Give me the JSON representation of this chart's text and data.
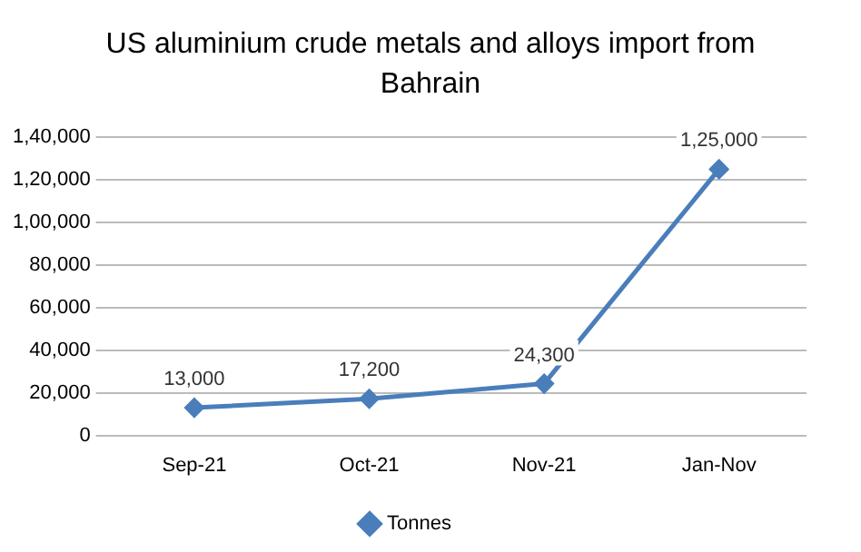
{
  "chart_data": {
    "type": "line",
    "title": "US aluminium crude metals and alloys import from Bahrain",
    "categories": [
      "Sep-21",
      "Oct-21",
      "Nov-21",
      "Jan-Nov"
    ],
    "series": [
      {
        "name": "Tonnes",
        "color": "#4a7ebb",
        "values": [
          13000,
          17200,
          24300,
          125000
        ],
        "value_labels": [
          "13,000",
          "17,200",
          "24,300",
          "1,25,000"
        ]
      }
    ],
    "ylim": [
      0,
      140000
    ],
    "yticks": [
      0,
      {
        "value": 20000,
        "label": "20,000"
      },
      {
        "value": 40000,
        "label": "40,000"
      },
      {
        "value": 60000,
        "label": "60,000"
      },
      {
        "value": 80000,
        "label": "80,000"
      },
      {
        "value": 100000,
        "label": "1,00,000"
      },
      {
        "value": 120000,
        "label": "1,20,000"
      },
      {
        "value": 140000,
        "label": "1,40,000"
      }
    ],
    "grid": "y",
    "legend": "bottom",
    "marker": "diamond",
    "line_style": "solid"
  }
}
